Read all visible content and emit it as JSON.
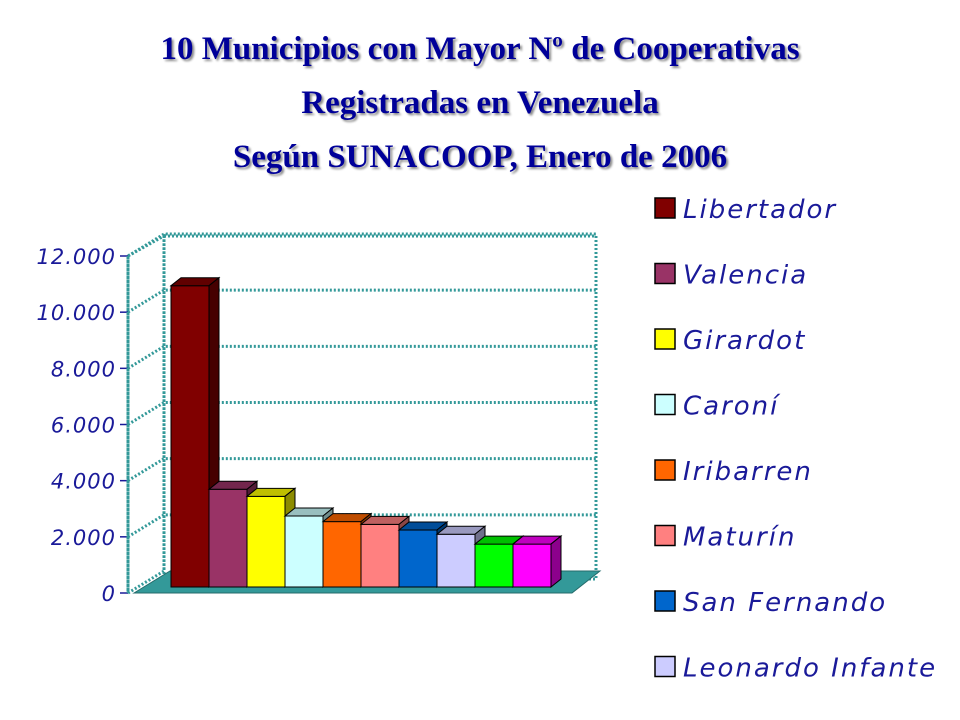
{
  "title_lines": [
    "10 Municipios con Mayor Nº de Cooperativas",
    "Registradas en Venezuela",
    "Según SUNACOOP,  Enero de 2006"
  ],
  "chart_data": {
    "type": "bar",
    "style": "3d",
    "title": "10 Municipios con Mayor Nº de Cooperativas Registradas en Venezuela Según SUNACOOP,  Enero de 2006",
    "categories": [
      "Libertador",
      "Valencia",
      "Girardot",
      "Caroní",
      "Iribarren",
      "Maturín",
      "San Fernando",
      "Leonardo Infante",
      "",
      ""
    ],
    "values": [
      10800,
      3550,
      3300,
      2600,
      2400,
      2300,
      2100,
      1950,
      1600,
      1600
    ],
    "colors": [
      "#800000",
      "#993366",
      "#ffff00",
      "#ccffff",
      "#ff6600",
      "#ff8080",
      "#0066cc",
      "#ccccff",
      "#00ff00",
      "#ff00ff"
    ],
    "ylim": [
      0,
      12000
    ],
    "yticks": [
      "0",
      "2.000",
      "4.000",
      "6.000",
      "8.000",
      "10.000",
      "12.000"
    ],
    "grid": true,
    "legend_position": "right",
    "floor_color": "#339999",
    "gridline_color": "#339999"
  }
}
